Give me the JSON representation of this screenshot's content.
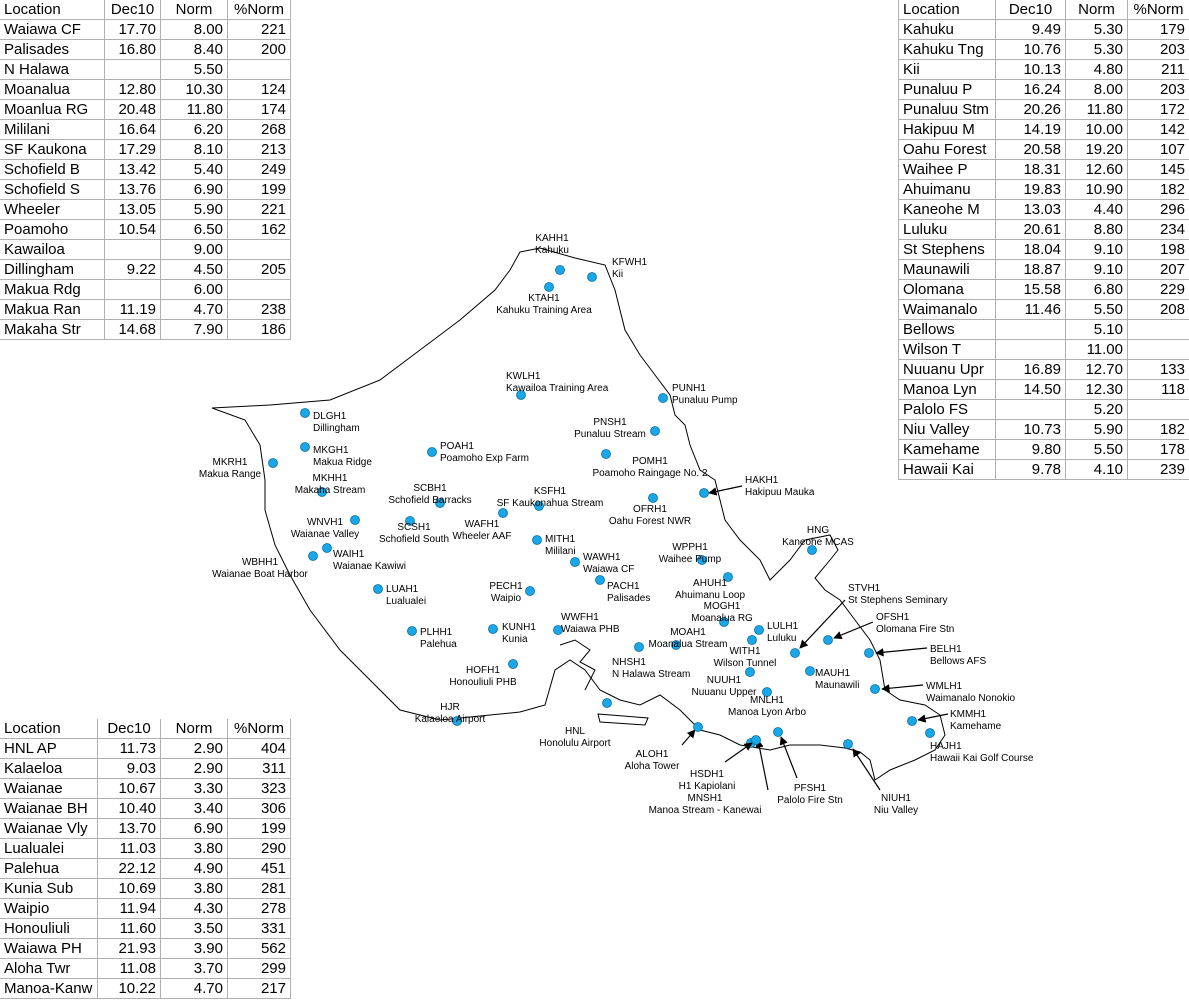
{
  "tables": [
    {
      "header": [
        "Location",
        "Dec10",
        "Norm",
        "%Norm"
      ],
      "rows": [
        [
          "Waiawa CF",
          "17.70",
          "8.00",
          "221"
        ],
        [
          "Palisades",
          "16.80",
          "8.40",
          "200"
        ],
        [
          "N Halawa",
          null,
          "5.50",
          null
        ],
        [
          "Moanalua",
          "12.80",
          "10.30",
          "124"
        ],
        [
          "Moanlua RG",
          "20.48",
          "11.80",
          "174"
        ],
        [
          "Mililani",
          "16.64",
          "6.20",
          "268"
        ],
        [
          "SF Kaukona",
          "17.29",
          "8.10",
          "213"
        ],
        [
          "Schofield B",
          "13.42",
          "5.40",
          "249"
        ],
        [
          "Schofield S",
          "13.76",
          "6.90",
          "199"
        ],
        [
          "Wheeler",
          "13.05",
          "5.90",
          "221"
        ],
        [
          "Poamoho",
          "10.54",
          "6.50",
          "162"
        ],
        [
          "Kawailoa",
          null,
          "9.00",
          null
        ],
        [
          "Dillingham",
          "9.22",
          "4.50",
          "205"
        ],
        [
          "Makua Rdg",
          null,
          "6.00",
          null
        ],
        [
          "Makua Ran",
          "11.19",
          "4.70",
          "238"
        ],
        [
          "Makaha Str",
          "14.68",
          "7.90",
          "186"
        ]
      ]
    },
    {
      "header": [
        "Location",
        "Dec10",
        "Norm",
        "%Norm"
      ],
      "rows": [
        [
          "Kahuku",
          "9.49",
          "5.30",
          "179"
        ],
        [
          "Kahuku Tng",
          "10.76",
          "5.30",
          "203"
        ],
        [
          "Kii",
          "10.13",
          "4.80",
          "211"
        ],
        [
          "Punaluu P",
          "16.24",
          "8.00",
          "203"
        ],
        [
          "Punaluu Stm",
          "20.26",
          "11.80",
          "172"
        ],
        [
          "Hakipuu M",
          "14.19",
          "10.00",
          "142"
        ],
        [
          "Oahu Forest",
          "20.58",
          "19.20",
          "107"
        ],
        [
          "Waihee P",
          "18.31",
          "12.60",
          "145"
        ],
        [
          "Ahuimanu",
          "19.83",
          "10.90",
          "182"
        ],
        [
          "Kaneohe M",
          "13.03",
          "4.40",
          "296"
        ],
        [
          "Luluku",
          "20.61",
          "8.80",
          "234"
        ],
        [
          "St Stephens",
          "18.04",
          "9.10",
          "198"
        ],
        [
          "Maunawili",
          "18.87",
          "9.10",
          "207"
        ],
        [
          "Olomana",
          "15.58",
          "6.80",
          "229"
        ],
        [
          "Waimanalo",
          "11.46",
          "5.50",
          "208"
        ],
        [
          "Bellows",
          null,
          "5.10",
          null
        ],
        [
          "Wilson T",
          null,
          "11.00",
          null
        ],
        [
          "Nuuanu Upr",
          "16.89",
          "12.70",
          "133"
        ],
        [
          "Manoa Lyn",
          "14.50",
          "12.30",
          "118"
        ],
        [
          "Palolo FS",
          null,
          "5.20",
          null
        ],
        [
          "Niu Valley",
          "10.73",
          "5.90",
          "182"
        ],
        [
          "Kamehame",
          "9.80",
          "5.50",
          "178"
        ],
        [
          "Hawaii Kai",
          "9.78",
          "4.10",
          "239"
        ]
      ]
    },
    {
      "header": [
        "Location",
        "Dec10",
        "Norm",
        "%Norm"
      ],
      "rows": [
        [
          "HNL AP",
          "11.73",
          "2.90",
          "404"
        ],
        [
          "Kalaeloa",
          "9.03",
          "2.90",
          "311"
        ],
        [
          "Waianae",
          "10.67",
          "3.30",
          "323"
        ],
        [
          "Waianae BH",
          "10.40",
          "3.40",
          "306"
        ],
        [
          "Waianae Vly",
          "13.70",
          "6.90",
          "199"
        ],
        [
          "Lualualei",
          "11.03",
          "3.80",
          "290"
        ],
        [
          "Palehua",
          "22.12",
          "4.90",
          "451"
        ],
        [
          "Kunia Sub",
          "10.69",
          "3.80",
          "281"
        ],
        [
          "Waipio",
          "11.94",
          "4.30",
          "278"
        ],
        [
          "Honouliuli",
          "11.60",
          "3.50",
          "331"
        ],
        [
          "Waiawa PH",
          "21.93",
          "3.90",
          "562"
        ],
        [
          "Aloha Twr",
          "11.08",
          "3.70",
          "299"
        ],
        [
          "Manoa-Kanw",
          "10.22",
          "4.70",
          "217"
        ]
      ]
    }
  ],
  "stations": [
    {
      "code": "KAHH1",
      "name": "Kahuku"
    },
    {
      "code": "KFWH1",
      "name": "Kii"
    },
    {
      "code": "KTAH1",
      "name": "Kahuku Training Area"
    },
    {
      "code": "KWLH1",
      "name": "Kawailoa Training Area"
    },
    {
      "code": "PUNH1",
      "name": "Punaluu Pump"
    },
    {
      "code": "PNSH1",
      "name": "Punaluu Stream"
    },
    {
      "code": "DLGH1",
      "name": "Dillingham"
    },
    {
      "code": "MKGH1",
      "name": "Makua Ridge"
    },
    {
      "code": "POAH1",
      "name": "Poamoho Exp Farm"
    },
    {
      "code": "POMH1",
      "name": "Poamoho Raingage No. 2"
    },
    {
      "code": "MKRH1",
      "name": "Makua Range"
    },
    {
      "code": "MKHH1",
      "name": "Makaha Stream"
    },
    {
      "code": "SCBH1",
      "name": "Schofield Barracks"
    },
    {
      "code": "KSFH1",
      "name": "SF Kaukonahua Stream"
    },
    {
      "code": "HAKH1",
      "name": "Hakipuu Mauka"
    },
    {
      "code": "OFRH1",
      "name": "Oahu Forest NWR"
    },
    {
      "code": "WNVH1",
      "name": "Waianae Valley"
    },
    {
      "code": "SCSH1",
      "name": "Schofield South"
    },
    {
      "code": "WAFH1",
      "name": "Wheeler AAF"
    },
    {
      "code": "MITH1",
      "name": "Mililani"
    },
    {
      "code": "WBHH1",
      "name": "Waianae Boat Harbor"
    },
    {
      "code": "WAIH1",
      "name": "Waianae Kawiwi"
    },
    {
      "code": "WAWH1",
      "name": "Waiawa CF"
    },
    {
      "code": "WPPH1",
      "name": "Waihee Pump"
    },
    {
      "code": "AHUH1",
      "name": "Ahuimanu Loop"
    },
    {
      "code": "HNG",
      "name": "Kaneohe MCAS"
    },
    {
      "code": "LUAH1",
      "name": "Lualualei"
    },
    {
      "code": "PECH1",
      "name": "Waipio"
    },
    {
      "code": "PACH1",
      "name": "Palisades"
    },
    {
      "code": "STVH1",
      "name": "St Stephens Seminary"
    },
    {
      "code": "MOGH1",
      "name": "Moanalua RG"
    },
    {
      "code": "OFSH1",
      "name": "Olomana Fire Stn"
    },
    {
      "code": "KUNH1",
      "name": "Kunia"
    },
    {
      "code": "WWFH1",
      "name": "Waiawa PHB"
    },
    {
      "code": "LULH1",
      "name": "Luluku"
    },
    {
      "code": "PLHH1",
      "name": "Palehua"
    },
    {
      "code": "MOAH1",
      "name": "Moanalua Stream"
    },
    {
      "code": "WITH1",
      "name": "Wilson Tunnel"
    },
    {
      "code": "NHSH1",
      "name": "N Halawa Stream"
    },
    {
      "code": "BELH1",
      "name": "Bellows AFS"
    },
    {
      "code": "HOFH1",
      "name": "Honouliuli PHB"
    },
    {
      "code": "MAUH1",
      "name": "Maunawili"
    },
    {
      "code": "NUUH1",
      "name": "Nuuanu Upper"
    },
    {
      "code": "MNLH1",
      "name": "Manoa Lyon Arbo"
    },
    {
      "code": "WMLH1",
      "name": "Waimanalo Nonokio"
    },
    {
      "code": "HJR",
      "name": "Kalaeloa Airport"
    },
    {
      "code": "HNL",
      "name": "Honolulu Airport"
    },
    {
      "code": "KMMH1",
      "name": "Kamehame"
    },
    {
      "code": "ALOH1",
      "name": "Aloha Tower"
    },
    {
      "code": "HAJH1",
      "name": "Hawaii Kai Golf Course"
    },
    {
      "code": "MNSH1",
      "name": "Manoa Stream - Kanewai"
    },
    {
      "code": "HSDH1",
      "name": "H1 Kapiolani"
    },
    {
      "code": "PFSH1",
      "name": "Palolo Fire Stn"
    },
    {
      "code": "NIUH1",
      "name": "Niu Valley"
    }
  ]
}
